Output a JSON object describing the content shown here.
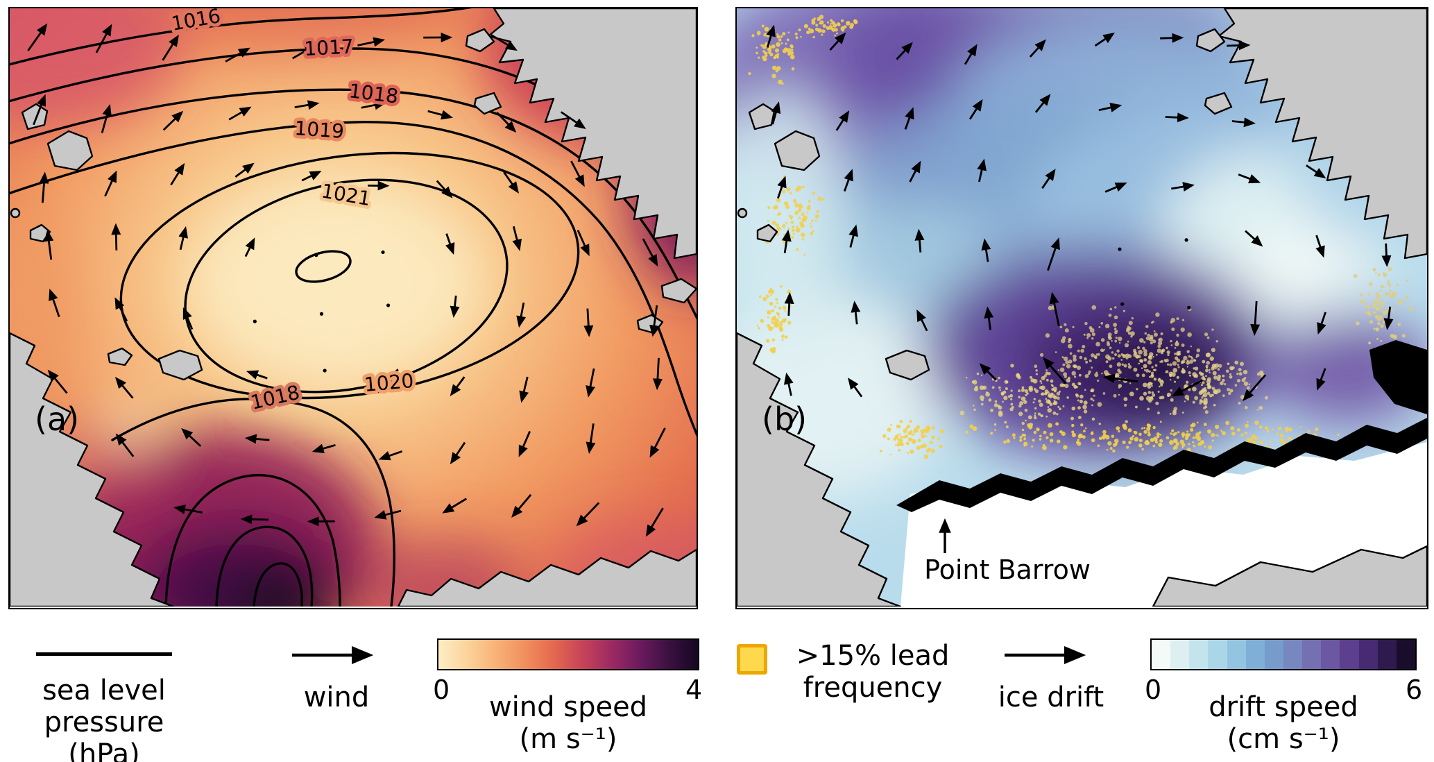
{
  "panels": {
    "a": {
      "label": "(a)",
      "contour_labels": [
        "1016",
        "1017",
        "1018",
        "1019",
        "1021",
        "1020",
        "1018"
      ]
    },
    "b": {
      "label": "(b)",
      "annotation": "Point Barrow"
    }
  },
  "legend": {
    "slp": {
      "line1": "sea level",
      "line2": "pressure (hPa)"
    },
    "wind": {
      "label": "wind"
    },
    "wind_colorbar": {
      "min": "0",
      "max": "4",
      "title_line1": "wind speed",
      "title_line2": "(m s⁻¹)"
    },
    "lead": {
      "line1": ">15% lead",
      "line2": "frequency"
    },
    "ice_drift": {
      "label": "ice drift"
    },
    "drift_colorbar": {
      "min": "0",
      "max": "6",
      "title_line1": "drift speed",
      "title_line2": "(cm s⁻¹)"
    }
  },
  "colors": {
    "land": "#c8c8c8",
    "coast": "#000000",
    "lead_yellow_fill": "#ffd94d",
    "lead_yellow_border": "#eda800",
    "wind_cmap": [
      "#fdeec6",
      "#fbd39b",
      "#f8b278",
      "#f18f5e",
      "#e4684f",
      "#c74358",
      "#9c2a62",
      "#6b1a5e",
      "#3a1140",
      "#150722"
    ],
    "drift_cmap": [
      "#f4faf8",
      "#ddeff1",
      "#c4e4ed",
      "#abd6e8",
      "#93c4e0",
      "#7fafd6",
      "#779bcb",
      "#7787c0",
      "#7470b2",
      "#6b57a2",
      "#5c3f8e",
      "#472a72",
      "#2f1a4e",
      "#190d2b"
    ]
  }
}
